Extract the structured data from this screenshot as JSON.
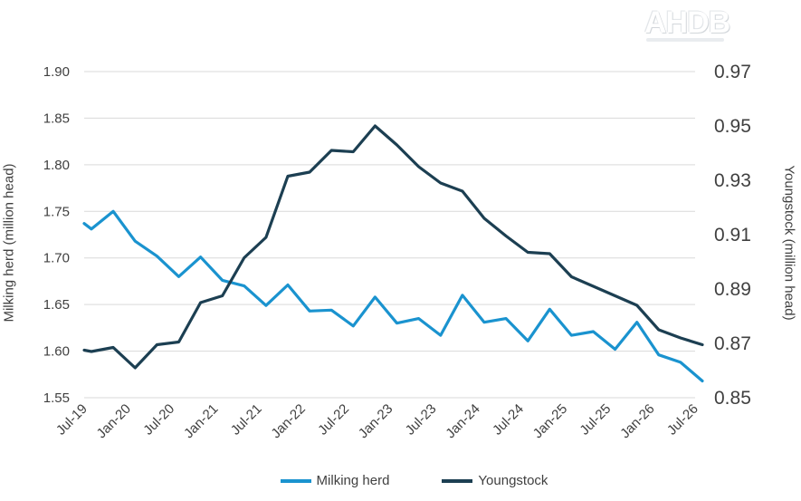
{
  "logo": "AHDB",
  "chart_data": {
    "type": "line",
    "title": "",
    "xlabel": "",
    "ylabel_left": "Milking herd (million head)",
    "ylabel_right": "Youngstock (million head)",
    "y_left_range": [
      1.55,
      1.9
    ],
    "y_left_ticks": [
      "1.55",
      "1.60",
      "1.65",
      "1.70",
      "1.75",
      "1.80",
      "1.85",
      "1.90"
    ],
    "y_right_range": [
      0.85,
      0.97
    ],
    "y_right_ticks": [
      "0.85",
      "0.87",
      "0.89",
      "0.91",
      "0.93",
      "0.95",
      "0.97"
    ],
    "x_tick_labels": [
      "Jul-19",
      "Jan-20",
      "Jul-20",
      "Jan-21",
      "Jul-21",
      "Jan-22",
      "Jul-22",
      "Jan-23",
      "Jul-23",
      "Jan-24",
      "Jul-24",
      "Jan-25",
      "Jul-25",
      "Jan-26",
      "Jul-26"
    ],
    "grid": true,
    "legend_position": "bottom",
    "series": [
      {
        "name": "Milking herd",
        "axis": "left",
        "color": "#1a93cf",
        "points": [
          [
            "Jul-19",
            1.737
          ],
          [
            "Aug-19",
            1.731
          ],
          [
            "Nov-19",
            1.75
          ],
          [
            "Feb-20",
            1.718
          ],
          [
            "May-20",
            1.702
          ],
          [
            "Aug-20",
            1.68
          ],
          [
            "Nov-20",
            1.701
          ],
          [
            "Feb-21",
            1.676
          ],
          [
            "May-21",
            1.67
          ],
          [
            "Aug-21",
            1.649
          ],
          [
            "Nov-21",
            1.671
          ],
          [
            "Feb-22",
            1.643
          ],
          [
            "May-22",
            1.644
          ],
          [
            "Aug-22",
            1.627
          ],
          [
            "Nov-22",
            1.658
          ],
          [
            "Feb-23",
            1.63
          ],
          [
            "May-23",
            1.635
          ],
          [
            "Aug-23",
            1.617
          ],
          [
            "Nov-23",
            1.66
          ],
          [
            "Feb-24",
            1.631
          ],
          [
            "May-24",
            1.635
          ],
          [
            "Aug-24",
            1.611
          ],
          [
            "Nov-24",
            1.645
          ],
          [
            "Feb-25",
            1.617
          ],
          [
            "May-25",
            1.621
          ],
          [
            "Aug-25",
            1.602
          ],
          [
            "Nov-25",
            1.631
          ],
          [
            "Feb-26",
            1.596
          ],
          [
            "May-26",
            1.588
          ],
          [
            "Aug-26",
            1.568
          ]
        ]
      },
      {
        "name": "Youngstock",
        "axis": "right",
        "color": "#1c3f52",
        "points": [
          [
            "Jul-19",
            0.8675
          ],
          [
            "Aug-19",
            0.867
          ],
          [
            "Nov-19",
            0.8685
          ],
          [
            "Feb-20",
            0.861
          ],
          [
            "May-20",
            0.8695
          ],
          [
            "Aug-20",
            0.8705
          ],
          [
            "Nov-20",
            0.885
          ],
          [
            "Feb-21",
            0.8875
          ],
          [
            "May-21",
            0.9015
          ],
          [
            "Aug-21",
            0.909
          ],
          [
            "Nov-21",
            0.9315
          ],
          [
            "Feb-22",
            0.933
          ],
          [
            "May-22",
            0.941
          ],
          [
            "Aug-22",
            0.9405
          ],
          [
            "Nov-22",
            0.95
          ],
          [
            "Feb-23",
            0.943
          ],
          [
            "May-23",
            0.935
          ],
          [
            "Aug-23",
            0.929
          ],
          [
            "Nov-23",
            0.926
          ],
          [
            "Feb-24",
            0.916
          ],
          [
            "May-24",
            0.9095
          ],
          [
            "Aug-24",
            0.9035
          ],
          [
            "Nov-24",
            0.903
          ],
          [
            "Feb-25",
            0.8945
          ],
          [
            "May-25",
            0.891
          ],
          [
            "Aug-25",
            0.8875
          ],
          [
            "Nov-25",
            0.884
          ],
          [
            "Feb-26",
            0.875
          ],
          [
            "May-26",
            0.872
          ],
          [
            "Aug-26",
            0.8695
          ]
        ]
      }
    ]
  }
}
